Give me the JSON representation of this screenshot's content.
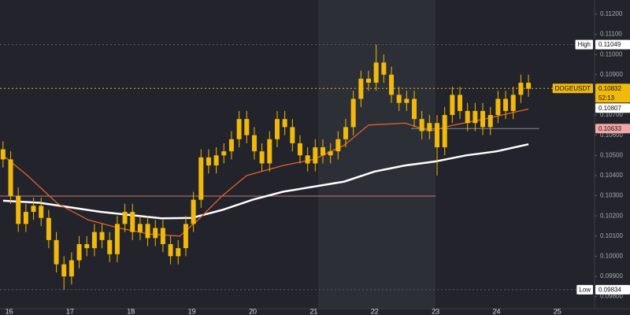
{
  "chart_data": {
    "type": "candlestick",
    "color": "#f0b90b",
    "grid": false,
    "xlim": [
      15.85,
      25.61
    ],
    "xticks": [
      16,
      17,
      18,
      19,
      20,
      21,
      22,
      23,
      24,
      25
    ],
    "ylim": [
      0.0974,
      0.1127
    ],
    "yticks": [
      {
        "value": 0.112,
        "label": "0.11200"
      },
      {
        "value": 0.111,
        "label": "0.11100"
      },
      {
        "value": 0.11,
        "label": "0.11000"
      },
      {
        "value": 0.109,
        "label": "0.10900"
      },
      {
        "value": 0.108,
        "label": "0.10800"
      },
      {
        "value": 0.107,
        "label": "0.10700"
      },
      {
        "value": 0.106,
        "label": "0.10600"
      },
      {
        "value": 0.105,
        "label": "0.10500"
      },
      {
        "value": 0.104,
        "label": "0.10400"
      },
      {
        "value": 0.103,
        "label": "0.10300"
      },
      {
        "value": 0.102,
        "label": "0.10200"
      },
      {
        "value": 0.101,
        "label": "0.10100"
      },
      {
        "value": 0.1,
        "label": "0.10000"
      },
      {
        "value": 0.099,
        "label": "0.09900"
      },
      {
        "value": 0.098,
        "label": "0.09800"
      }
    ],
    "x": [
      15.9,
      16.025,
      16.15,
      16.275,
      16.4,
      16.525,
      16.65,
      16.775,
      16.9,
      17.025,
      17.15,
      17.275,
      17.4,
      17.525,
      17.65,
      17.775,
      17.9,
      18.025,
      18.15,
      18.275,
      18.4,
      18.525,
      18.65,
      18.775,
      18.9,
      19.025,
      19.15,
      19.275,
      19.4,
      19.525,
      19.65,
      19.775,
      19.9,
      20.025,
      20.15,
      20.275,
      20.4,
      20.525,
      20.65,
      20.775,
      20.9,
      21.025,
      21.15,
      21.275,
      21.4,
      21.525,
      21.65,
      21.775,
      21.9,
      22.025,
      22.15,
      22.275,
      22.4,
      22.525,
      22.65,
      22.775,
      22.9,
      23.025,
      23.15,
      23.275,
      23.4,
      23.525,
      23.65,
      23.775,
      23.9,
      24.025,
      24.15,
      24.275,
      24.4,
      24.525
    ],
    "open": [
      0.1053,
      0.1048,
      0.103,
      0.1016,
      0.1022,
      0.1025,
      0.1019,
      0.1008,
      0.0996,
      0.099,
      0.0998,
      0.1006,
      0.1004,
      0.1012,
      0.1008,
      0.1001,
      0.1016,
      0.1022,
      0.1012,
      0.1016,
      0.1009,
      0.1014,
      0.1006,
      0.1,
      0.1004,
      0.1016,
      0.1028,
      0.1049,
      0.1045,
      0.105,
      0.1052,
      0.1058,
      0.1068,
      0.106,
      0.1052,
      0.1046,
      0.1058,
      0.1068,
      0.1064,
      0.1056,
      0.105,
      0.1046,
      0.1054,
      0.105,
      0.1052,
      0.1058,
      0.1064,
      0.1078,
      0.1088,
      0.1086,
      0.1096,
      0.109,
      0.108,
      0.1076,
      0.1078,
      0.1068,
      0.1062,
      0.1066,
      0.1054,
      0.107,
      0.108,
      0.1072,
      0.1066,
      0.1072,
      0.1064,
      0.107,
      0.1078,
      0.1072,
      0.108,
      0.1086
    ],
    "high": [
      0.1057,
      0.1052,
      0.1034,
      0.1026,
      0.1029,
      0.1029,
      0.1023,
      0.1012,
      0.1,
      0.1002,
      0.101,
      0.101,
      0.1016,
      0.1016,
      0.1012,
      0.102,
      0.1026,
      0.1026,
      0.102,
      0.102,
      0.1018,
      0.1018,
      0.101,
      0.1008,
      0.102,
      0.1032,
      0.1053,
      0.1053,
      0.1054,
      0.1056,
      0.1062,
      0.1072,
      0.1072,
      0.1064,
      0.1056,
      0.1062,
      0.1072,
      0.1072,
      0.1068,
      0.106,
      0.1054,
      0.1058,
      0.1058,
      0.1056,
      0.1062,
      0.1068,
      0.1082,
      0.1092,
      0.1092,
      0.11049,
      0.11,
      0.1094,
      0.1084,
      0.1082,
      0.1082,
      0.1072,
      0.107,
      0.107,
      0.1074,
      0.1084,
      0.1084,
      0.1076,
      0.1076,
      0.1076,
      0.1074,
      0.1082,
      0.1082,
      0.1084,
      0.109,
      0.109
    ],
    "low": [
      0.1044,
      0.1026,
      0.1012,
      0.1012,
      0.1018,
      0.1015,
      0.1004,
      0.0992,
      0.09834,
      0.0986,
      0.0994,
      0.1,
      0.1,
      0.1004,
      0.0997,
      0.0997,
      0.1012,
      0.1008,
      0.1008,
      0.1005,
      0.1005,
      0.1002,
      0.0996,
      0.0996,
      0.1,
      0.1012,
      0.1024,
      0.1041,
      0.1041,
      0.1046,
      0.1048,
      0.1054,
      0.1056,
      0.1048,
      0.1042,
      0.1042,
      0.1054,
      0.106,
      0.1052,
      0.1046,
      0.1042,
      0.1042,
      0.1046,
      0.1046,
      0.1048,
      0.1054,
      0.106,
      0.1074,
      0.1082,
      0.1082,
      0.1086,
      0.1076,
      0.1072,
      0.1072,
      0.1064,
      0.1058,
      0.1058,
      0.104,
      0.105,
      0.1066,
      0.1068,
      0.1062,
      0.1062,
      0.106,
      0.106,
      0.1066,
      0.1068,
      0.1068,
      0.1076,
      0.1079
    ],
    "close": [
      0.1048,
      0.103,
      0.1016,
      0.1022,
      0.1025,
      0.1019,
      0.1008,
      0.0996,
      0.099,
      0.0998,
      0.1006,
      0.1004,
      0.1012,
      0.1008,
      0.1001,
      0.1016,
      0.1022,
      0.1012,
      0.1016,
      0.1009,
      0.1014,
      0.1006,
      0.1,
      0.1004,
      0.1016,
      0.1028,
      0.1049,
      0.1045,
      0.105,
      0.1052,
      0.1058,
      0.1068,
      0.106,
      0.1052,
      0.1046,
      0.1058,
      0.1068,
      0.1064,
      0.1056,
      0.105,
      0.1046,
      0.1054,
      0.105,
      0.1052,
      0.1058,
      0.1064,
      0.1078,
      0.1088,
      0.1086,
      0.1096,
      0.109,
      0.108,
      0.1076,
      0.1078,
      0.1068,
      0.1062,
      0.1066,
      0.1054,
      0.107,
      0.108,
      0.1072,
      0.1066,
      0.1072,
      0.1064,
      0.107,
      0.1078,
      0.1072,
      0.108,
      0.1086,
      0.1083
    ],
    "lines": [
      {
        "color": "#ffffff",
        "width": 2.5,
        "x": [
          15.9,
          16.5,
          17.5,
          18.5,
          19.0,
          19.5,
          20.0,
          20.5,
          21.0,
          21.5,
          22.0,
          22.5,
          23.0,
          23.5,
          24.0,
          24.525
        ],
        "values": [
          0.10275,
          0.10265,
          0.1022,
          0.10188,
          0.1019,
          0.1023,
          0.1028,
          0.1032,
          0.10345,
          0.1037,
          0.1042,
          0.1045,
          0.1047,
          0.105,
          0.1052,
          0.10555
        ]
      },
      {
        "color": "#e0632a",
        "width": 1.3,
        "x": [
          15.9,
          16.3,
          16.8,
          17.3,
          17.8,
          18.3,
          18.8,
          19.1,
          19.5,
          19.9,
          20.5,
          21.0,
          21.5,
          21.9,
          22.5,
          22.9,
          23.3,
          23.8,
          24.525
        ],
        "values": [
          0.105,
          0.104,
          0.1026,
          0.1018,
          0.1014,
          0.1011,
          0.101,
          0.1018,
          0.103,
          0.104,
          0.1045,
          0.1048,
          0.1055,
          0.1065,
          0.1066,
          0.1062,
          0.1065,
          0.1068,
          0.1073
        ]
      }
    ],
    "price_lines": [
      {
        "value": 0.11049,
        "color": "#5a5e6a",
        "dashed": true
      },
      {
        "value": 0.10832,
        "color": "#f0b90b",
        "dashed": true
      },
      {
        "value": 0.10633,
        "color": "#8a8d96",
        "dashed": false,
        "x": [
          22.6,
          24.7
        ]
      },
      {
        "value": 0.10298,
        "color": "#c9787a",
        "dashed": false,
        "x": [
          15.85,
          23.0
        ]
      },
      {
        "value": 0.09834,
        "color": "#5a5e6a",
        "dashed": true
      }
    ],
    "price_tags": [
      {
        "name": "High",
        "value": 0.11049,
        "color": "#ffffff"
      },
      {
        "name": "DOGEUSDT",
        "value": 0.10832,
        "countdown": "52:13",
        "color": "#f0b90b"
      },
      {
        "value": 0.10807,
        "color": "#ffffff"
      },
      {
        "value": 0.10633,
        "color": "#f4a6a6"
      },
      {
        "name": "Low",
        "value": 0.09834,
        "color": "#ffffff"
      }
    ]
  }
}
